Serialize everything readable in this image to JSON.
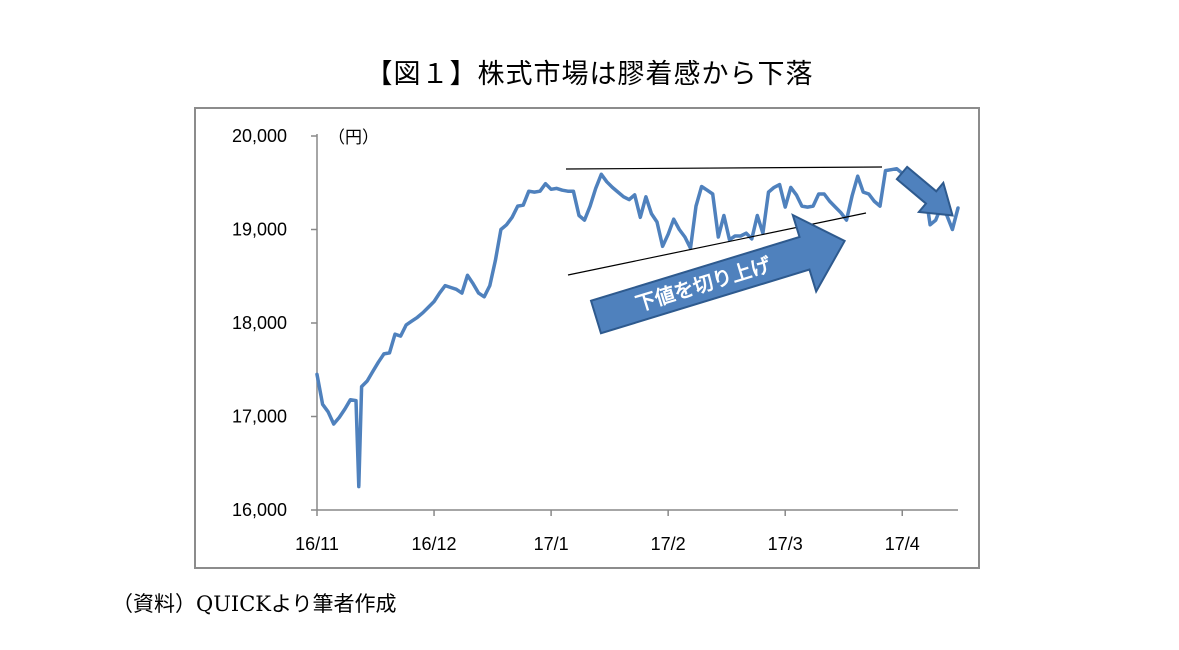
{
  "figure_title": "【図１】株式市場は膠着感から下落",
  "source_note": "（資料）QUICKより筆者作成",
  "chart_data": {
    "type": "line",
    "unit_label": "（円）",
    "ylim": [
      16000,
      20000
    ],
    "yticks": [
      16000,
      17000,
      18000,
      19000,
      20000
    ],
    "ytick_labels": [
      "16,000",
      "17,000",
      "18,000",
      "19,000",
      "20,000"
    ],
    "xlim": [
      0,
      115
    ],
    "xticks": [
      0,
      21,
      42,
      63,
      84,
      105
    ],
    "xtick_labels": [
      "16/11",
      "16/12",
      "17/1",
      "17/2",
      "17/3",
      "17/4"
    ],
    "grid": false,
    "legend": "none",
    "series_color": "#4f81bd",
    "annotation_text": "下値を切り上げ",
    "annotation_color": "#4f81bd",
    "series": [
      {
        "values": [
          [
            0,
            17450
          ],
          [
            1,
            17130
          ],
          [
            2,
            17050
          ],
          [
            3,
            16920
          ],
          [
            4,
            16990
          ],
          [
            5,
            17080
          ],
          [
            6,
            17180
          ],
          [
            7,
            17170
          ],
          [
            7.5,
            16250
          ],
          [
            8,
            17320
          ],
          [
            9,
            17380
          ],
          [
            10,
            17480
          ],
          [
            11,
            17580
          ],
          [
            12,
            17670
          ],
          [
            13,
            17680
          ],
          [
            14,
            17880
          ],
          [
            15,
            17860
          ],
          [
            16,
            17980
          ],
          [
            17,
            18020
          ],
          [
            18,
            18060
          ],
          [
            19,
            18110
          ],
          [
            20,
            18170
          ],
          [
            21,
            18230
          ],
          [
            22,
            18320
          ],
          [
            23,
            18400
          ],
          [
            24,
            18380
          ],
          [
            25,
            18360
          ],
          [
            26,
            18320
          ],
          [
            27,
            18510
          ],
          [
            28,
            18420
          ],
          [
            29,
            18320
          ],
          [
            30,
            18280
          ],
          [
            31,
            18400
          ],
          [
            32,
            18670
          ],
          [
            33,
            19000
          ],
          [
            34,
            19050
          ],
          [
            35,
            19130
          ],
          [
            36,
            19250
          ],
          [
            37,
            19260
          ],
          [
            38,
            19410
          ],
          [
            39,
            19400
          ],
          [
            40,
            19410
          ],
          [
            41,
            19490
          ],
          [
            42,
            19430
          ],
          [
            43,
            19440
          ],
          [
            44,
            19420
          ],
          [
            45,
            19410
          ],
          [
            46,
            19410
          ],
          [
            47,
            19150
          ],
          [
            48,
            19100
          ],
          [
            49,
            19250
          ],
          [
            50,
            19440
          ],
          [
            51,
            19590
          ],
          [
            52,
            19510
          ],
          [
            53,
            19450
          ],
          [
            54,
            19400
          ],
          [
            55,
            19350
          ],
          [
            56,
            19320
          ],
          [
            57,
            19370
          ],
          [
            58,
            19130
          ],
          [
            59,
            19350
          ],
          [
            60,
            19170
          ],
          [
            61,
            19080
          ],
          [
            62,
            18820
          ],
          [
            63,
            18950
          ],
          [
            64,
            19110
          ],
          [
            65,
            19000
          ],
          [
            66,
            18920
          ],
          [
            67,
            18800
          ],
          [
            68,
            19250
          ],
          [
            69,
            19460
          ],
          [
            70,
            19420
          ],
          [
            71,
            19380
          ],
          [
            72,
            18920
          ],
          [
            73,
            19150
          ],
          [
            74,
            18890
          ],
          [
            75,
            18930
          ],
          [
            76,
            18930
          ],
          [
            77,
            18960
          ],
          [
            78,
            18900
          ],
          [
            79,
            19150
          ],
          [
            80,
            18960
          ],
          [
            81,
            19400
          ],
          [
            82,
            19450
          ],
          [
            83,
            19480
          ],
          [
            84,
            19240
          ],
          [
            85,
            19450
          ],
          [
            86,
            19370
          ],
          [
            87,
            19250
          ],
          [
            88,
            19240
          ],
          [
            89,
            19250
          ],
          [
            90,
            19380
          ],
          [
            91,
            19380
          ],
          [
            92,
            19300
          ],
          [
            93,
            19240
          ],
          [
            94,
            19180
          ],
          [
            95,
            19100
          ],
          [
            96,
            19360
          ],
          [
            97,
            19570
          ],
          [
            98,
            19400
          ],
          [
            99,
            19380
          ],
          [
            100,
            19300
          ],
          [
            101,
            19250
          ],
          [
            102,
            19630
          ],
          [
            103,
            19640
          ],
          [
            104,
            19650
          ],
          [
            105,
            19600
          ],
          [
            106,
            19590
          ],
          [
            107,
            19520
          ],
          [
            108,
            19480
          ],
          [
            109,
            19450
          ],
          [
            110,
            19050
          ],
          [
            111,
            19100
          ],
          [
            112,
            19250
          ],
          [
            113,
            19150
          ],
          [
            114,
            19000
          ],
          [
            115,
            19230
          ]
        ]
      }
    ]
  }
}
